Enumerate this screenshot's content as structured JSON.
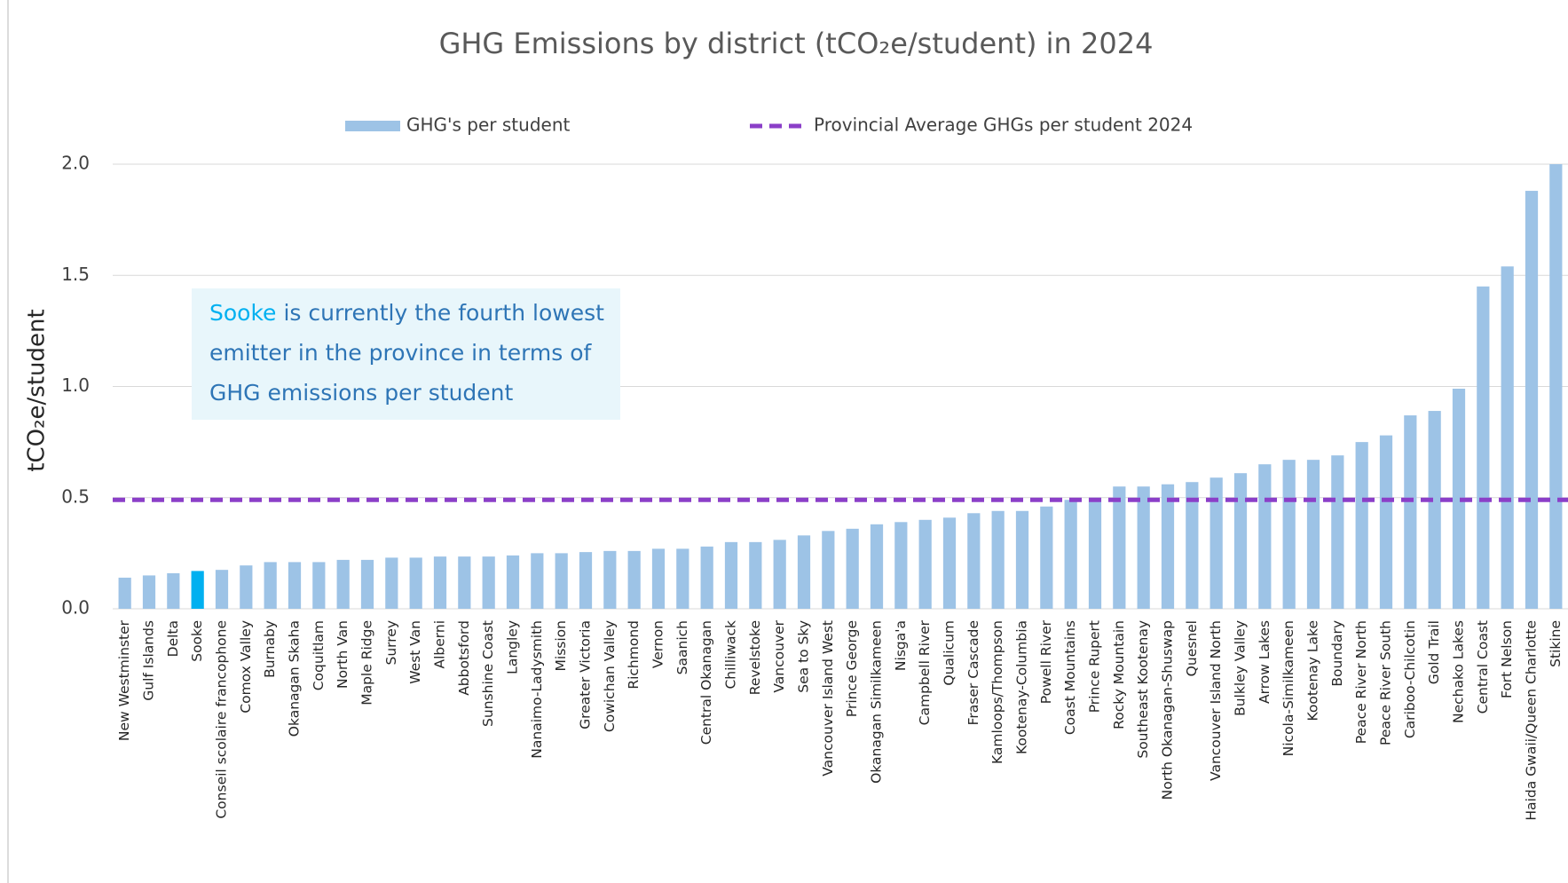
{
  "chart_data": {
    "type": "bar",
    "title": "GHG Emissions by district (tCO₂e/student) in 2024",
    "y_label": "tCO₂e/student",
    "categories": [
      "New Westminster",
      "Gulf Islands",
      "Delta",
      "Sooke",
      "Conseil scolaire francophone",
      "Comox Valley",
      "Burnaby",
      "Okanagan Skaha",
      "Coquitlam",
      "North Van",
      "Maple Ridge",
      "Surrey",
      "West Van",
      "Alberni",
      "Abbotsford",
      "Sunshine Coast",
      "Langley",
      "Nanaimo-Ladysmith",
      "Mission",
      "Greater Victoria",
      "Cowichan Valley",
      "Richmond",
      "Vernon",
      "Saanich",
      "Central Okanagan",
      "Chilliwack",
      "Revelstoke",
      "Vancouver",
      "Sea to Sky",
      "Vancouver Island West",
      "Prince George",
      "Okanagan Similkameen",
      "Nisga'a",
      "Campbell River",
      "Qualicum",
      "Fraser Cascade",
      "Kamloops/Thompson",
      "Kootenay-Columbia",
      "Powell River",
      "Coast Mountains",
      "Prince Rupert",
      "Rocky Mountain",
      "Southeast Kootenay",
      "North Okanagan-Shuswap",
      "Quesnel",
      "Vancouver Island North",
      "Bulkley Valley",
      "Arrow Lakes",
      "Nicola-Similkameen",
      "Kootenay Lake",
      "Boundary",
      "Peace River North",
      "Peace River South",
      "Cariboo-Chilcotin",
      "Gold Trail",
      "Nechako Lakes",
      "Central Coast",
      "Fort Nelson",
      "Haida Gwaii/Queen Charlotte",
      "Stikine"
    ],
    "series": [
      {
        "name": "GHG's per student",
        "color": "#9dc3e6",
        "values": [
          0.14,
          0.15,
          0.16,
          0.17,
          0.175,
          0.195,
          0.21,
          0.21,
          0.21,
          0.22,
          0.22,
          0.23,
          0.23,
          0.235,
          0.235,
          0.235,
          0.24,
          0.25,
          0.25,
          0.255,
          0.26,
          0.26,
          0.27,
          0.27,
          0.28,
          0.3,
          0.3,
          0.31,
          0.33,
          0.35,
          0.36,
          0.38,
          0.39,
          0.4,
          0.41,
          0.43,
          0.44,
          0.44,
          0.46,
          0.49,
          0.5,
          0.55,
          0.55,
          0.56,
          0.57,
          0.59,
          0.61,
          0.65,
          0.67,
          0.67,
          0.69,
          0.75,
          0.78,
          0.87,
          0.89,
          0.99,
          1.45,
          1.54,
          1.88,
          2.0
        ]
      },
      {
        "name": "Provincial Average GHGs per student 2024",
        "color": "#8b3fc8",
        "value": 0.49
      }
    ],
    "highlight_category": "Sooke",
    "highlight_color": "#00b0f0",
    "annotation": {
      "highlight": "Sooke",
      "lines": [
        "is currently the fourth lowest",
        "emitter in the province in terms of",
        "GHG emissions per student"
      ]
    },
    "ylim": [
      0,
      2
    ],
    "yticks": [
      {
        "value": 0,
        "label": "0.0"
      },
      0.5,
      {
        "value": 1,
        "label": "1.0"
      },
      1.5,
      {
        "value": 2,
        "label": "2.0"
      }
    ],
    "grid": true
  }
}
